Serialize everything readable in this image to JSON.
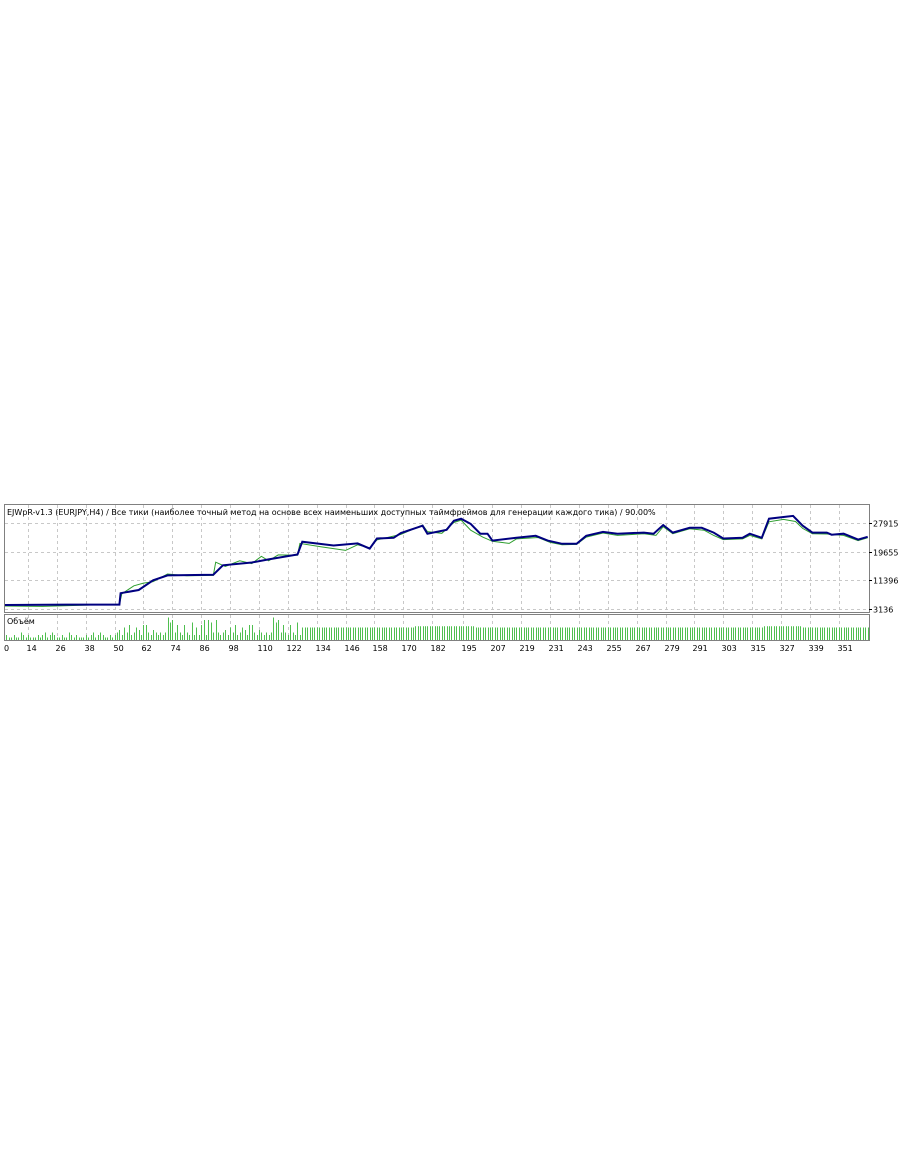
{
  "chart_data": {
    "type": "line",
    "title": "EJWpR-v1.3 (EURJPY,H4) / Все тики (наиболее точный метод на основе всех наименьших доступных таймфреймов для генерации каждого тика) / 90.00%",
    "volume_label": "Объём",
    "xlim": [
      0,
      363
    ],
    "ylim": [
      2282,
      33040
    ],
    "y_ticks": [
      3136,
      11396,
      19655,
      27915
    ],
    "x_ticks": [
      0,
      14,
      26,
      38,
      50,
      62,
      74,
      86,
      98,
      110,
      122,
      134,
      146,
      158,
      170,
      182,
      195,
      207,
      219,
      231,
      243,
      255,
      267,
      279,
      291,
      303,
      315,
      327,
      339,
      351
    ],
    "grid": true,
    "colors": {
      "balance": "#000080",
      "equity": "#2e9e2e",
      "volume": "#4fbf4f",
      "grid": "#c8c8c8",
      "frame": "#808080"
    },
    "series": [
      {
        "key": "balance",
        "points": [
          [
            0,
            4300
          ],
          [
            30,
            4400
          ],
          [
            52,
            4400
          ],
          [
            52.5,
            7700
          ],
          [
            60,
            8600
          ],
          [
            66,
            11400
          ],
          [
            72,
            12800
          ],
          [
            91,
            13000
          ],
          [
            95,
            15700
          ],
          [
            107,
            16500
          ],
          [
            114,
            17400
          ],
          [
            126,
            18800
          ],
          [
            128,
            22500
          ],
          [
            141,
            21400
          ],
          [
            151,
            22000
          ],
          [
            156,
            20500
          ],
          [
            159,
            23400
          ],
          [
            166,
            23600
          ],
          [
            169,
            25000
          ],
          [
            178,
            27100
          ],
          [
            180,
            24800
          ],
          [
            188,
            25900
          ],
          [
            191,
            28500
          ],
          [
            194,
            29100
          ],
          [
            198,
            27600
          ],
          [
            202,
            24800
          ],
          [
            205,
            24800
          ],
          [
            207,
            22800
          ],
          [
            217,
            23600
          ],
          [
            225,
            24200
          ],
          [
            230,
            22800
          ],
          [
            236,
            21900
          ],
          [
            242,
            21900
          ],
          [
            246,
            24200
          ],
          [
            253,
            25300
          ],
          [
            259,
            24800
          ],
          [
            270,
            25100
          ],
          [
            274,
            24800
          ],
          [
            278,
            27300
          ],
          [
            282,
            25100
          ],
          [
            289,
            26500
          ],
          [
            294,
            26500
          ],
          [
            299,
            25100
          ],
          [
            303,
            23400
          ],
          [
            311,
            23600
          ],
          [
            314,
            24800
          ],
          [
            319,
            23600
          ],
          [
            322,
            29100
          ],
          [
            328,
            29600
          ],
          [
            332,
            29900
          ],
          [
            336,
            27100
          ],
          [
            340,
            25100
          ],
          [
            346,
            25100
          ],
          [
            348,
            24500
          ],
          [
            353,
            24800
          ],
          [
            359,
            23100
          ],
          [
            363,
            23900
          ]
        ]
      },
      {
        "key": "equity",
        "points": [
          [
            0,
            4000
          ],
          [
            20,
            3900
          ],
          [
            40,
            4300
          ],
          [
            52,
            4400
          ],
          [
            53,
            7500
          ],
          [
            58,
            9800
          ],
          [
            62,
            10600
          ],
          [
            66,
            11000
          ],
          [
            72,
            13200
          ],
          [
            80,
            12700
          ],
          [
            91,
            12800
          ],
          [
            92,
            16600
          ],
          [
            96,
            15400
          ],
          [
            102,
            17000
          ],
          [
            107,
            16200
          ],
          [
            111,
            18300
          ],
          [
            114,
            17000
          ],
          [
            118,
            18700
          ],
          [
            126,
            18600
          ],
          [
            127,
            22000
          ],
          [
            136,
            21000
          ],
          [
            146,
            20000
          ],
          [
            151,
            21600
          ],
          [
            156,
            20700
          ],
          [
            159,
            23000
          ],
          [
            169,
            24600
          ],
          [
            178,
            27300
          ],
          [
            180,
            25400
          ],
          [
            186,
            24900
          ],
          [
            191,
            28000
          ],
          [
            194,
            28700
          ],
          [
            198,
            25800
          ],
          [
            203,
            23800
          ],
          [
            207,
            22600
          ],
          [
            214,
            22000
          ],
          [
            217,
            23300
          ],
          [
            226,
            23700
          ],
          [
            231,
            22300
          ],
          [
            236,
            21600
          ],
          [
            242,
            21700
          ],
          [
            246,
            23800
          ],
          [
            253,
            25000
          ],
          [
            259,
            24300
          ],
          [
            270,
            24800
          ],
          [
            275,
            24300
          ],
          [
            278,
            26800
          ],
          [
            282,
            24800
          ],
          [
            289,
            26200
          ],
          [
            295,
            25800
          ],
          [
            299,
            24300
          ],
          [
            303,
            23100
          ],
          [
            311,
            23300
          ],
          [
            314,
            24300
          ],
          [
            319,
            23300
          ],
          [
            322,
            28200
          ],
          [
            328,
            28900
          ],
          [
            333,
            28300
          ],
          [
            336,
            26300
          ],
          [
            340,
            24800
          ],
          [
            346,
            24700
          ],
          [
            353,
            24300
          ],
          [
            359,
            22800
          ],
          [
            363,
            23600
          ]
        ]
      }
    ],
    "volume_runs": [
      {
        "from": 0,
        "to": 50,
        "levels": [
          2,
          3,
          1,
          2,
          3,
          2,
          1,
          1,
          2,
          1,
          1,
          3,
          2,
          1,
          2,
          1,
          1,
          1,
          2,
          1
        ]
      },
      {
        "from": 50,
        "to": 128,
        "levels": [
          2,
          3,
          4,
          2,
          5,
          3,
          6,
          2,
          3,
          5,
          4,
          2,
          6,
          6,
          3,
          2,
          4,
          3,
          2,
          3,
          2,
          3,
          9,
          7,
          8,
          3,
          6,
          3,
          2,
          6,
          3,
          2,
          7,
          2,
          5,
          2,
          6,
          8,
          2,
          8,
          7,
          3,
          8,
          3
        ]
      },
      {
        "from": 128,
        "to": 175,
        "levels": [
          5
        ]
      },
      {
        "from": 175,
        "to": 200,
        "levels": [
          5.5
        ]
      },
      {
        "from": 200,
        "to": 320,
        "levels": [
          5
        ]
      },
      {
        "from": 320,
        "to": 336,
        "levels": [
          5.5
        ]
      },
      {
        "from": 336,
        "to": 364,
        "levels": [
          5
        ]
      }
    ],
    "volume_max": 10
  }
}
